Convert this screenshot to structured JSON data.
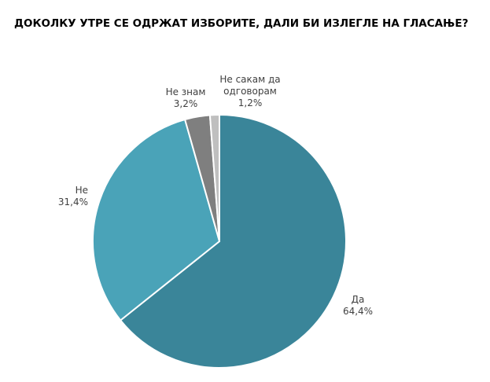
{
  "chart_data": {
    "type": "pie",
    "title": "ДОКОЛКУ УТРЕ СЕ ОДРЖАТ ИЗБОРИТЕ, ДАЛИ БИ ИЗЛЕГЛЕ НА ГЛАСАЊЕ?",
    "categories": [
      "Да",
      "Не",
      "Не знам",
      "Не сакам да одговорам"
    ],
    "values": [
      64.4,
      31.4,
      3.2,
      1.2
    ],
    "value_labels": [
      "64,4%",
      "31,4%",
      "3,2%",
      "1,2%"
    ],
    "colors": [
      "#3a8599",
      "#4aa3b8",
      "#7f7f7f",
      "#bfbfbf"
    ]
  }
}
